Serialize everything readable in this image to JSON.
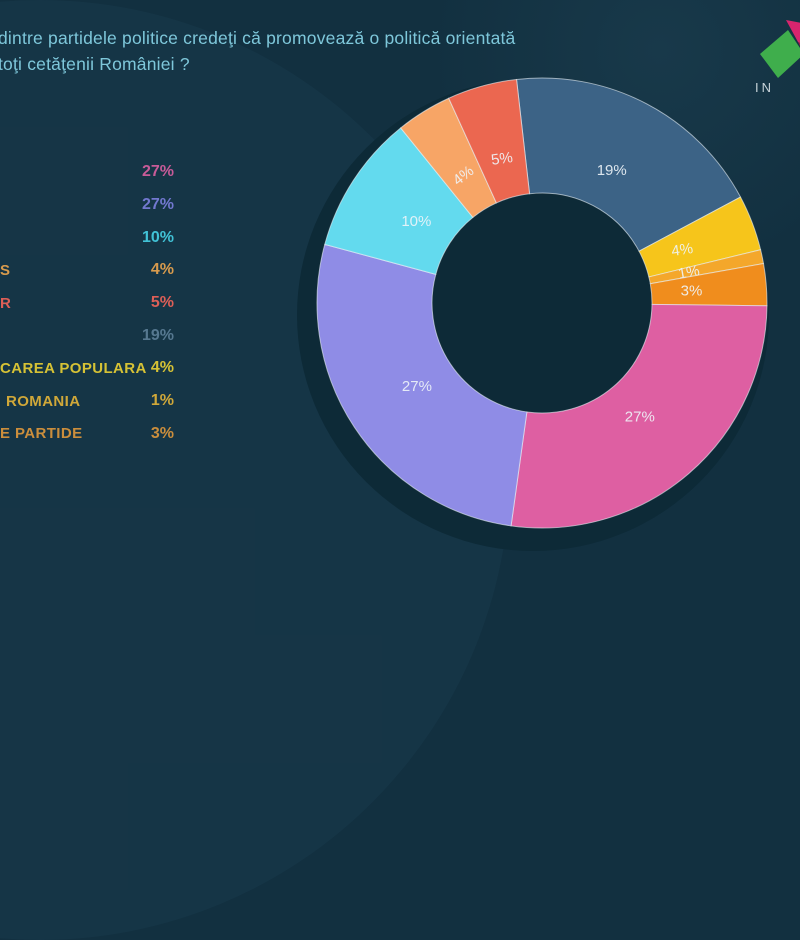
{
  "title": {
    "line1": "dintre partidele politice credeţi că promovează o politică orientată",
    "line2": "toţi cetăţenii României ?"
  },
  "logo": {
    "text": "IN",
    "green": "#3fae4c",
    "magenta": "#d8256e",
    "dark_red": "#9c1c48"
  },
  "theme": {
    "background": "#123040",
    "title_color": "#7ec7da",
    "slice_label_color": "rgba(238,244,248,0.9)"
  },
  "chart_data": {
    "type": "pie",
    "donut": true,
    "units": "%",
    "title": "dintre partidele politice credeţi că promovează o politică orientată toţi cetăţenii României ?",
    "start_angle_deg": -6.5,
    "clockwise": true,
    "legend_position": "left",
    "slices": [
      {
        "value": 19,
        "label": "19%",
        "color": "#3c6386",
        "label_rotation": 0
      },
      {
        "value": 4,
        "label": "4%",
        "color": "#f6c51b",
        "label_rotation": -8
      },
      {
        "value": 1,
        "label": "1%",
        "color": "#f4a72b",
        "label_rotation": -10
      },
      {
        "value": 3,
        "label": "3%",
        "color": "#f08d1d",
        "label_rotation": 0
      },
      {
        "value": 27,
        "label": "27%",
        "color": "#de5fa2",
        "label_rotation": 0
      },
      {
        "value": 27,
        "label": "27%",
        "color": "#8f8ce6",
        "label_rotation": 0
      },
      {
        "value": 10,
        "label": "10%",
        "color": "#63daee",
        "label_rotation": 0
      },
      {
        "value": 4,
        "label": "4%",
        "color": "#f7a566",
        "label_rotation": -38
      },
      {
        "value": 5,
        "label": "5%",
        "color": "#eb6750",
        "label_rotation": -8
      }
    ],
    "legend": [
      {
        "name": "",
        "percent": "27%",
        "color": "#c75b98"
      },
      {
        "name": "",
        "percent": "27%",
        "color": "#7278d0"
      },
      {
        "name": "",
        "percent": "10%",
        "color": "#41c2d6"
      },
      {
        "name": "S",
        "percent": "4%",
        "color": "#d89b4d"
      },
      {
        "name": "R",
        "percent": "5%",
        "color": "#dd5f57"
      },
      {
        "name": "",
        "percent": "19%",
        "color": "#567890"
      },
      {
        "name": "CAREA POPULARA",
        "percent": "4%",
        "color": "#d6c235"
      },
      {
        "name": "ROMANIA",
        "percent": "1%",
        "color": "#d0a839"
      },
      {
        "name": "E PARTIDE",
        "percent": "3%",
        "color": "#cb8e3c"
      }
    ]
  }
}
